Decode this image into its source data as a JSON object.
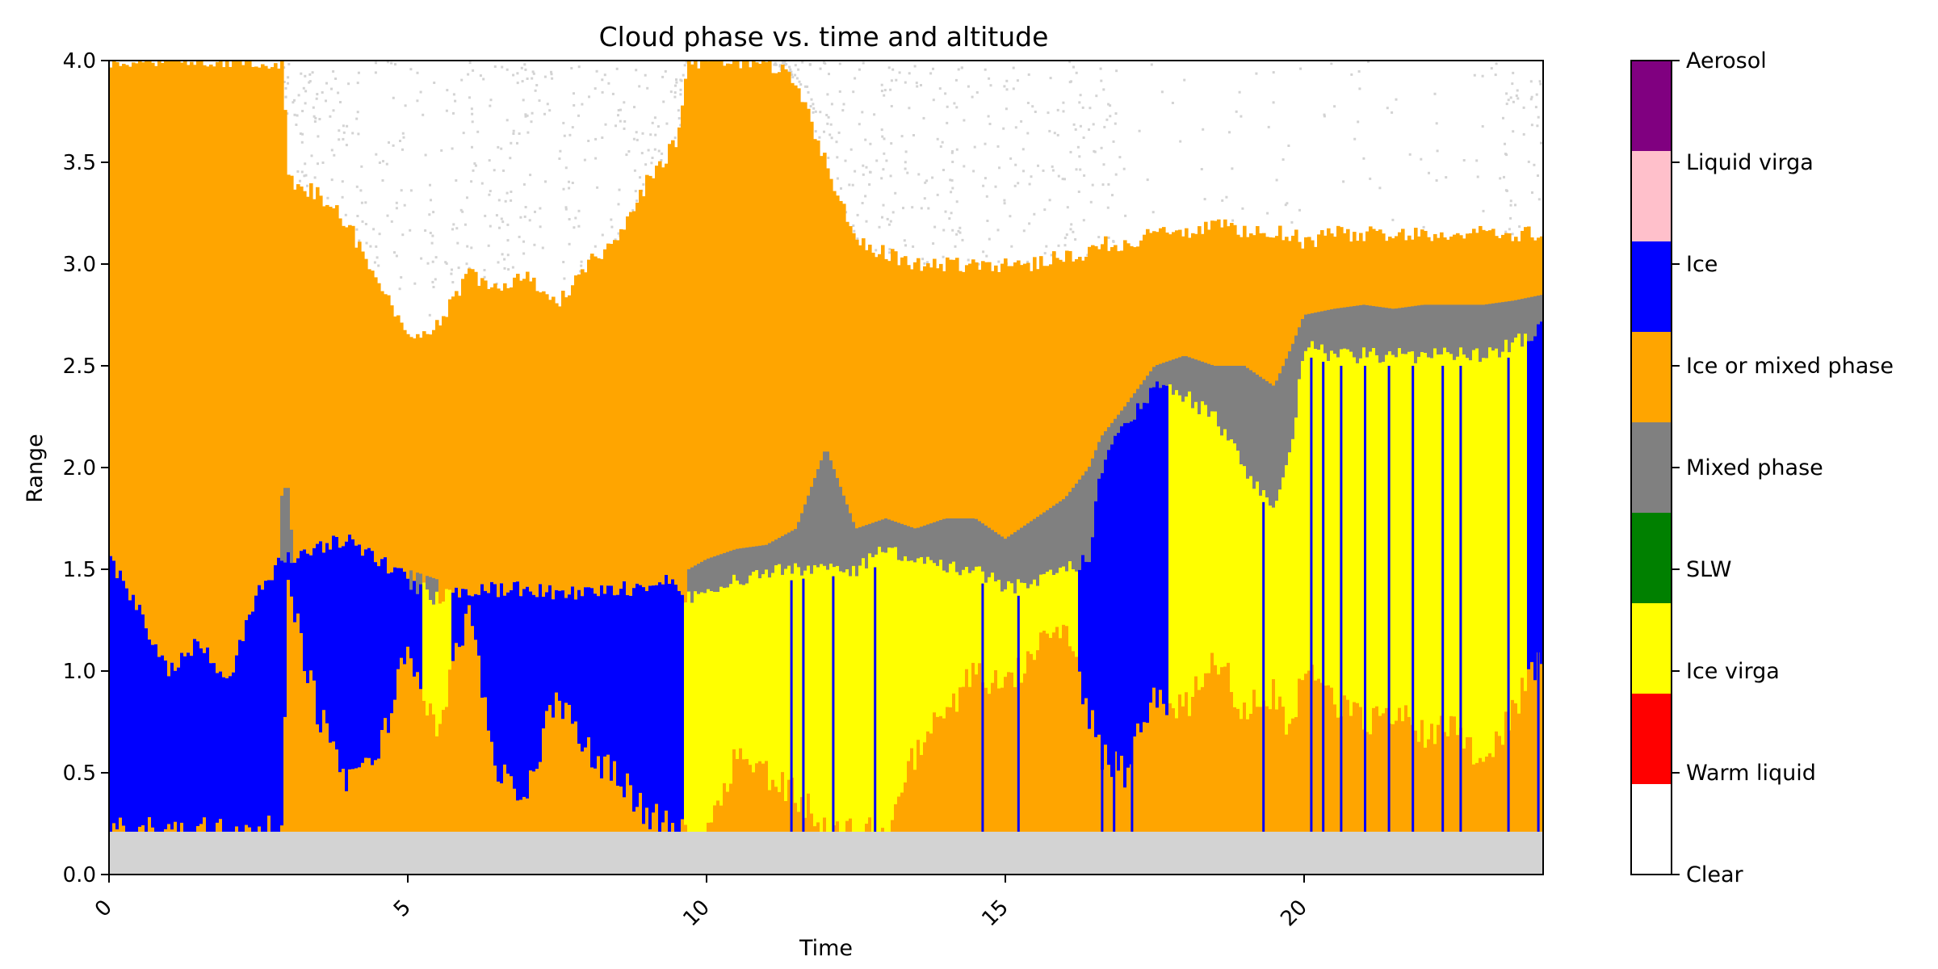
{
  "chart_data": {
    "type": "heatmap",
    "title": "Cloud phase vs. time and altitude",
    "xlabel": "Time",
    "ylabel": "Range",
    "xlim": [
      0,
      24
    ],
    "ylim": [
      0,
      4
    ],
    "xticks": [
      {
        "value": 0,
        "label": "0"
      },
      {
        "value": 5,
        "label": "5"
      },
      {
        "value": 10,
        "label": "10"
      },
      {
        "value": 15,
        "label": "15"
      },
      {
        "value": 20,
        "label": "20"
      }
    ],
    "yticks": [
      {
        "value": 0.0,
        "label": "0.0"
      },
      {
        "value": 0.5,
        "label": "0.5"
      },
      {
        "value": 1.0,
        "label": "1.0"
      },
      {
        "value": 1.5,
        "label": "1.5"
      },
      {
        "value": 2.0,
        "label": "2.0"
      },
      {
        "value": 2.5,
        "label": "2.5"
      },
      {
        "value": 3.0,
        "label": "3.0"
      },
      {
        "value": 3.5,
        "label": "3.5"
      },
      {
        "value": 4.0,
        "label": "4.0"
      }
    ],
    "xtick_rotation_deg": 45,
    "grid": false,
    "colorbar": {
      "position": "right",
      "categories": [
        {
          "label": "Clear",
          "color": "#ffffff"
        },
        {
          "label": "Warm liquid",
          "color": "#ff0000"
        },
        {
          "label": "Ice virga",
          "color": "#ffff00"
        },
        {
          "label": "SLW",
          "color": "#008000"
        },
        {
          "label": "Mixed phase",
          "color": "#808080"
        },
        {
          "label": "Ice or mixed phase",
          "color": "#ffa500"
        },
        {
          "label": "Ice",
          "color": "#0000ff"
        },
        {
          "label": "Liquid virga",
          "color": "#ffc0cb"
        },
        {
          "label": "Aerosol",
          "color": "#800080"
        }
      ]
    },
    "below_range_fill": {
      "color": "#d3d3d3",
      "range_max": 0.21
    },
    "noise_color": "#d3d3d3",
    "profile": {
      "time": [
        0,
        0.5,
        1,
        1.5,
        2,
        2.5,
        2.9,
        3,
        3.5,
        4,
        4.5,
        5,
        5.5,
        6,
        6.5,
        7,
        7.5,
        8,
        8.5,
        9,
        9.5,
        9.7,
        10,
        10.5,
        11,
        11.5,
        12,
        12.5,
        13,
        13.5,
        14,
        14.5,
        15,
        15.5,
        16,
        16.4,
        16.6,
        17,
        17.5,
        18,
        18.5,
        19,
        19.5,
        19.8,
        20,
        20.5,
        21,
        21.5,
        22,
        22.5,
        23,
        23.5,
        24
      ],
      "cloud_top": [
        4,
        4,
        4,
        4,
        4,
        4,
        4,
        3.4,
        3.35,
        3.2,
        2.9,
        2.65,
        2.7,
        2.95,
        2.9,
        2.95,
        2.8,
        3.0,
        3.1,
        3.4,
        3.6,
        4,
        4,
        4,
        4,
        3.9,
        3.5,
        3.1,
        3.05,
        3.0,
        3.0,
        3.0,
        3.0,
        3.0,
        3.05,
        3.05,
        3.1,
        3.1,
        3.15,
        3.15,
        3.2,
        3.15,
        3.15,
        3.15,
        3.1,
        3.15,
        3.15,
        3.15,
        3.15,
        3.15,
        3.15,
        3.15,
        3.15
      ],
      "mixed_top": [
        0,
        0,
        0,
        0,
        0,
        0,
        1.9,
        1.9,
        0,
        0,
        0,
        1.5,
        1.45,
        0,
        0,
        0,
        0,
        0,
        0,
        0,
        0,
        1.5,
        1.55,
        1.6,
        1.62,
        1.7,
        2.1,
        1.7,
        1.75,
        1.7,
        1.75,
        1.75,
        1.65,
        1.75,
        1.85,
        2.0,
        2.15,
        2.3,
        2.5,
        2.55,
        2.5,
        2.5,
        2.4,
        2.6,
        2.75,
        2.78,
        2.8,
        2.78,
        2.8,
        2.8,
        2.8,
        2.82,
        2.85
      ],
      "transition_base": [
        1.55,
        1.3,
        1.0,
        1.15,
        0.95,
        1.4,
        1.55,
        1.55,
        1.6,
        1.65,
        1.55,
        1.45,
        1.35,
        1.4,
        1.4,
        1.4,
        1.38,
        1.38,
        1.4,
        1.42,
        1.45,
        1.35,
        1.4,
        1.45,
        1.48,
        1.5,
        1.52,
        1.5,
        1.6,
        1.55,
        1.5,
        1.5,
        1.4,
        1.45,
        1.5,
        1.55,
        2.0,
        2.2,
        2.4,
        2.35,
        2.25,
        2.0,
        1.8,
        2.1,
        2.6,
        2.55,
        2.55,
        2.55,
        2.55,
        2.55,
        2.55,
        2.6,
        2.7
      ],
      "lower_type": [
        "Ice",
        "Ice",
        "Ice",
        "Ice",
        "Ice",
        "Ice",
        "Ice",
        "Ice",
        "Ice",
        "Ice",
        "Ice",
        "Ice",
        "Ice virga",
        "Ice",
        "Ice",
        "Ice",
        "Ice",
        "Ice",
        "Ice",
        "Ice",
        "Ice",
        "Ice virga",
        "Ice virga",
        "Ice virga",
        "Ice virga",
        "Ice virga",
        "Ice virga",
        "Ice virga",
        "Ice virga",
        "Ice virga",
        "Ice virga",
        "Ice virga",
        "Ice virga",
        "Ice virga",
        "Ice virga",
        "Ice",
        "Ice",
        "Ice",
        "Ice",
        "Ice virga",
        "Ice virga",
        "Ice virga",
        "Ice virga",
        "Ice virga",
        "Ice virga",
        "Ice virga",
        "Ice virga",
        "Ice virga",
        "Ice virga",
        "Ice virga",
        "Ice virga",
        "Ice virga",
        "Ice"
      ],
      "low_layer_top": [
        0.21,
        0.21,
        0.21,
        0.21,
        0.21,
        0.21,
        0.21,
        1.4,
        0.8,
        0.45,
        0.6,
        1.1,
        0.7,
        1.3,
        0.5,
        0.4,
        0.9,
        0.6,
        0.5,
        0.3,
        0.21,
        0.21,
        0.21,
        0.6,
        0.5,
        0.4,
        0.21,
        0.21,
        0.21,
        0.6,
        0.8,
        1.0,
        0.9,
        1.1,
        1.2,
        0.8,
        0.6,
        0.5,
        0.9,
        0.8,
        1.1,
        0.8,
        0.9,
        0.7,
        1.05,
        0.85,
        0.75,
        0.8,
        0.7,
        0.75,
        0.55,
        0.8,
        1.1
      ]
    }
  }
}
